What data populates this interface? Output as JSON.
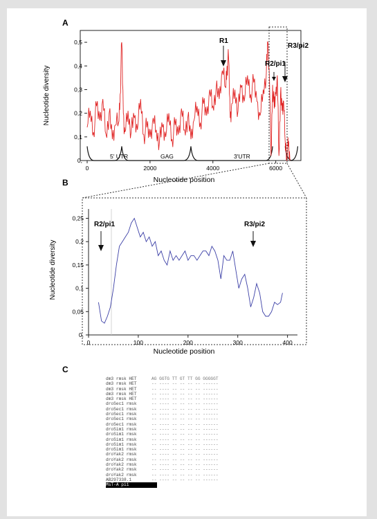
{
  "panels": {
    "a": {
      "letter": "A",
      "chart_data": {
        "type": "line",
        "xlabel": "Nucleotide position",
        "ylabel": "Nucleotide diversity",
        "x_ticks": [
          "0",
          "2000",
          "4000",
          "6000"
        ],
        "y_ticks": [
          "0,",
          "0,1",
          "0,2",
          "0,3",
          "0,4",
          "0,5"
        ],
        "xlim": [
          0,
          6800
        ],
        "ylim": [
          0,
          0.55
        ],
        "series_color": "#e02424",
        "series": [
          {
            "x": [
              0,
              100,
              200,
              300,
              400,
              500,
              600,
              700,
              800,
              900,
              1000,
              1050,
              1100,
              1150,
              1200,
              1300,
              1400,
              1500,
              1600,
              1700,
              1800,
              1900,
              2000,
              2100,
              2200,
              2300,
              2400,
              2500,
              2600,
              2700,
              2800,
              2900,
              3000,
              3100,
              3200,
              3300,
              3400,
              3500,
              3600,
              3700,
              3800,
              3900,
              4000,
              4100,
              4200,
              4300,
              4400,
              4450,
              4500,
              4550,
              4600,
              4700,
              4800,
              4900,
              5000,
              5100,
              5200,
              5300,
              5400,
              5500,
              5600,
              5700,
              5750,
              5800,
              5850,
              5900,
              5950,
              6000,
              6050,
              6100,
              6150,
              6200,
              6250,
              6300,
              6350,
              6400,
              6450
            ],
            "y": [
              0.14,
              0.21,
              0.12,
              0.23,
              0.17,
              0.26,
              0.11,
              0.2,
              0.09,
              0.15,
              0.16,
              0.28,
              0.5,
              0.2,
              0.12,
              0.21,
              0.12,
              0.18,
              0.13,
              0.26,
              0.11,
              0.14,
              0.1,
              0.18,
              0.13,
              0.08,
              0.14,
              0.1,
              0.2,
              0.09,
              0.15,
              0.11,
              0.22,
              0.13,
              0.18,
              0.09,
              0.17,
              0.23,
              0.16,
              0.24,
              0.19,
              0.3,
              0.23,
              0.3,
              0.26,
              0.38,
              0.31,
              0.4,
              0.43,
              0.18,
              0.24,
              0.3,
              0.21,
              0.31,
              0.25,
              0.36,
              0.28,
              0.33,
              0.25,
              0.19,
              0.3,
              0.37,
              0.5,
              0.34,
              0.02,
              0.32,
              0.22,
              0.28,
              0.36,
              0.02,
              0.28,
              0.21,
              0.25,
              0.08,
              0.02,
              0.06,
              0.0
            ]
          }
        ],
        "region_labels": [
          "5' UTR",
          "GAG",
          "3'UTR"
        ],
        "annotations": [
          "R1",
          "R2/pi1",
          "R3/pi2"
        ]
      }
    },
    "b": {
      "letter": "B",
      "chart_data": {
        "type": "line",
        "xlabel": "Nucleotide position",
        "ylabel": "Nucleotide diversity",
        "x_ticks": [
          "0",
          "100",
          "200",
          "300",
          "400"
        ],
        "y_ticks": [
          "0,",
          "0,05",
          "0,1",
          "0,15",
          "0,2",
          "0,25"
        ],
        "xlim": [
          0,
          420
        ],
        "ylim": [
          0,
          0.27
        ],
        "series_color": "#3b3fa6",
        "series": [
          {
            "x": [
              20,
              26,
              32,
              38,
              44,
              50,
              56,
              62,
              68,
              74,
              80,
              86,
              92,
              98,
              104,
              110,
              116,
              122,
              128,
              134,
              140,
              146,
              152,
              158,
              164,
              170,
              176,
              182,
              188,
              194,
              200,
              206,
              212,
              218,
              224,
              230,
              236,
              242,
              248,
              254,
              260,
              266,
              272,
              278,
              284,
              290,
              296,
              302,
              308,
              314,
              320,
              326,
              332,
              338,
              344,
              350,
              356,
              362,
              368,
              374,
              380,
              386,
              390
            ],
            "y": [
              0.07,
              0.03,
              0.025,
              0.04,
              0.06,
              0.1,
              0.15,
              0.19,
              0.2,
              0.21,
              0.22,
              0.24,
              0.25,
              0.23,
              0.21,
              0.22,
              0.2,
              0.21,
              0.19,
              0.2,
              0.17,
              0.18,
              0.16,
              0.15,
              0.18,
              0.16,
              0.17,
              0.16,
              0.17,
              0.18,
              0.16,
              0.17,
              0.17,
              0.16,
              0.17,
              0.18,
              0.18,
              0.17,
              0.19,
              0.18,
              0.16,
              0.12,
              0.17,
              0.16,
              0.16,
              0.18,
              0.14,
              0.1,
              0.12,
              0.13,
              0.1,
              0.06,
              0.08,
              0.11,
              0.09,
              0.05,
              0.04,
              0.04,
              0.05,
              0.07,
              0.065,
              0.07,
              0.09
            ]
          }
        ],
        "annotations": [
          "R2/pi1",
          "R3/pi2"
        ]
      }
    },
    "c": {
      "letter": "C",
      "alignment": [
        {
          "id": "dm3 rmsk HET",
          "seq": "AG GGTG TT GT TT GG GGGGGT"
        },
        {
          "id": "dm3 rmsk HET",
          "seq": "-- ---- -- -- -- -- ------"
        },
        {
          "id": "dm3 rmsk HET",
          "seq": "-- ---- -- -- -- -- ------"
        },
        {
          "id": "dm3 rmsk HET",
          "seq": "-- ---- -- -- -- -- ------"
        },
        {
          "id": "dm3 rmsk HET",
          "seq": "-- ---- -- -- -- -- ------"
        },
        {
          "id": "droSec1 rmsk",
          "seq": "-- ---- -- -- -- -- ------"
        },
        {
          "id": "droSec1 rmsk",
          "seq": "-- ---- -- -- -- -- ------"
        },
        {
          "id": "droSec1 rmsk",
          "seq": "-- ---- -- -- -- -- ------"
        },
        {
          "id": "droSec1 rmsk",
          "seq": "-- ---- -- -- -- -- ------"
        },
        {
          "id": "droSec1 rmsk",
          "seq": "-- ---- -- -- -- -- ------"
        },
        {
          "id": "droSim1 rmsk",
          "seq": "-- ---- -- -- -- -- ------"
        },
        {
          "id": "droSim1 rmsk",
          "seq": "-- ---- -- -- -- -- ------"
        },
        {
          "id": "droSim1 rmsk",
          "seq": "-- ---- -- -- -- -- ------"
        },
        {
          "id": "droSim1 rmsk",
          "seq": "-- ---- -- -- -- -- ------"
        },
        {
          "id": "droSim1 rmsk",
          "seq": "-- ---- -- -- -- -- ------"
        },
        {
          "id": "droYak2 rmsk",
          "seq": "-- ---- -- -- -- -- ------"
        },
        {
          "id": "droYak2 rmsk",
          "seq": "-- ---- -- -- -- -- ------"
        },
        {
          "id": "droYak2 rmsk",
          "seq": "-- ---- -- -- -- -- ------"
        },
        {
          "id": "droYak2 rmsk",
          "seq": "-- ---- -- -- -- -- ------"
        },
        {
          "id": "droYak2 rmsk",
          "seq": "-- ---- -- -- -- -- ------"
        },
        {
          "id": "AB297338.1",
          "seq": "-- ---- -- -- -- -- ------"
        },
        {
          "id": "MsT-A pi1",
          "seq": "",
          "highlight": true
        }
      ]
    }
  }
}
